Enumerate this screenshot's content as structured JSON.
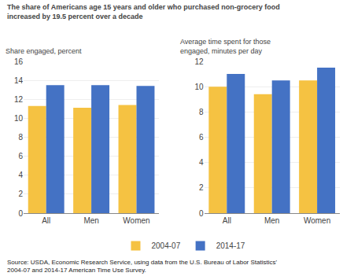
{
  "title": "The share of Americans age 15 years and older who purchased non-grocery food\nincreased by 19.5 percent over a decade",
  "annotations": [
    "Source: USDA, Economic Research Service, using data from the U.S. Bureau of Labor Statistics'\n2004-07 and 2014-17 American Time Use Survey."
  ],
  "chart_data": [
    {
      "type": "bar",
      "ylabel": "Share engaged, percent",
      "categories": [
        "All",
        "Men",
        "Women"
      ],
      "series": [
        {
          "name": "2004-07",
          "color": "#F5C242",
          "values": [
            11.3,
            11.1,
            11.4
          ]
        },
        {
          "name": "2014-17",
          "color": "#4472C4",
          "values": [
            13.5,
            13.5,
            13.4
          ]
        }
      ],
      "ylim": [
        0,
        16
      ],
      "yticks": [
        0,
        2,
        4,
        6,
        8,
        10,
        12,
        14,
        16
      ],
      "grid": true
    },
    {
      "type": "bar",
      "ylabel": "Average time spent for those\nengaged, minutes per day",
      "categories": [
        "All",
        "Men",
        "Women"
      ],
      "series": [
        {
          "name": "2004-07",
          "color": "#F5C242",
          "values": [
            10.0,
            9.4,
            10.5
          ]
        },
        {
          "name": "2014-17",
          "color": "#4472C4",
          "values": [
            11.0,
            10.5,
            11.5
          ]
        }
      ],
      "ylim": [
        0,
        12
      ],
      "yticks": [
        0,
        2,
        4,
        6,
        8,
        10,
        12
      ],
      "grid": true
    }
  ]
}
